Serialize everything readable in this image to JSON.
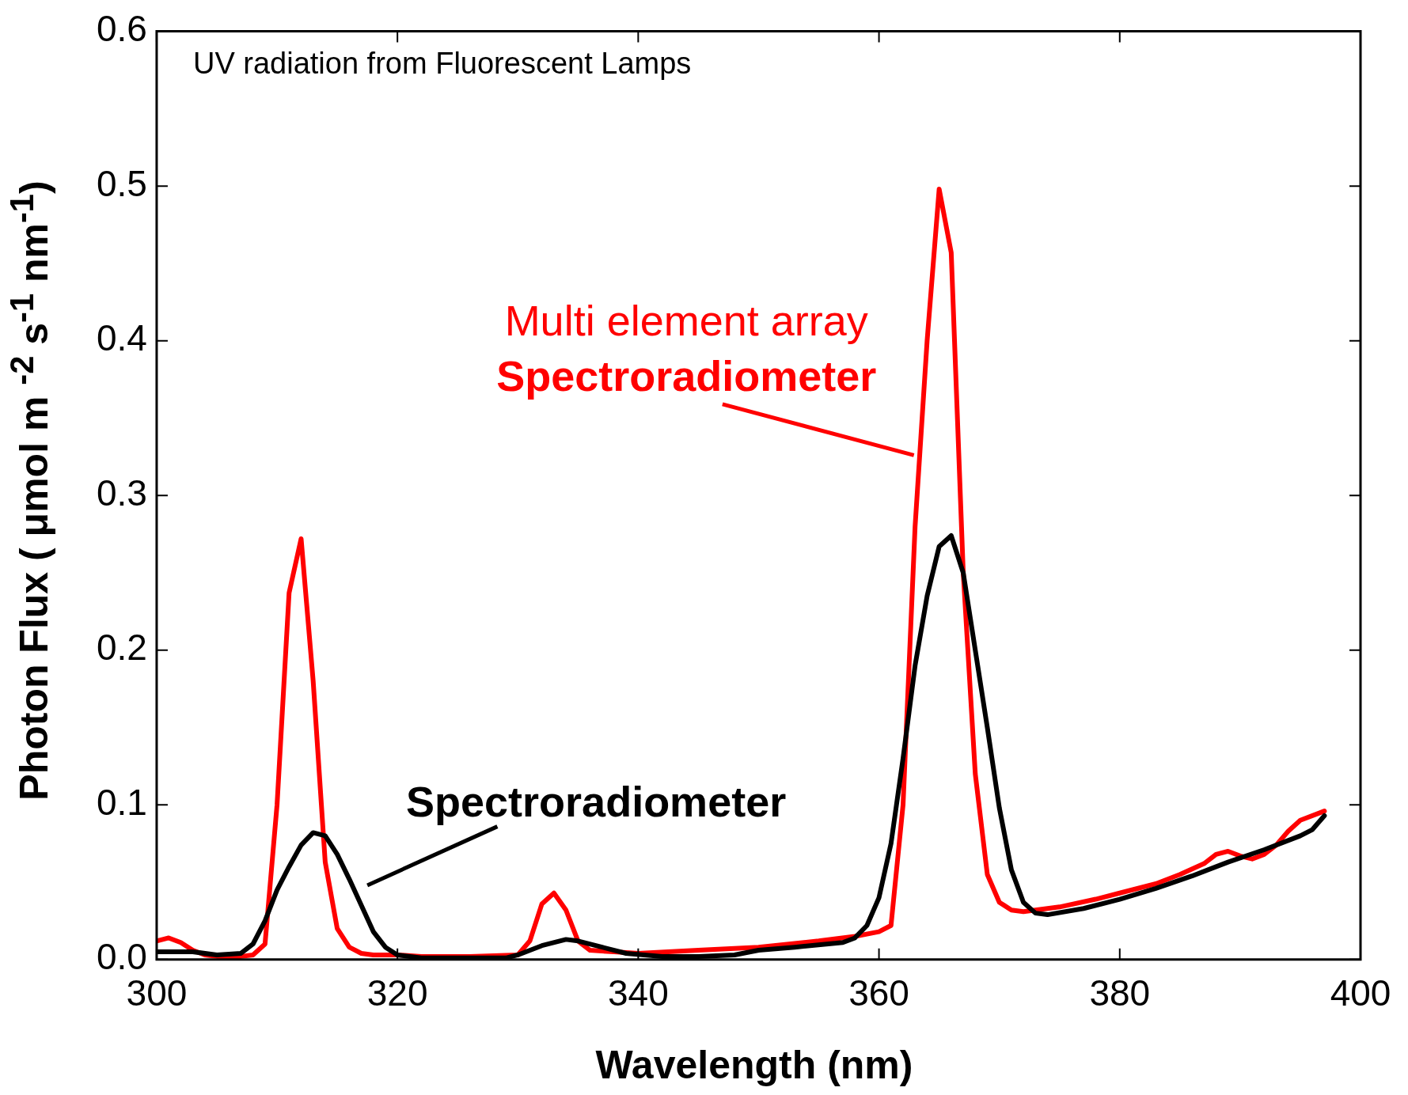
{
  "chart_data": {
    "type": "line",
    "title": "UV radiation from Fluorescent Lamps",
    "xlabel": "Wavelength (nm)",
    "ylabel": "Photon Flux ( μmol m $^{-2}$ s$^{-1}$ nm$^{-1}$)",
    "xlim": [
      300,
      400
    ],
    "xticks": [
      300,
      320,
      340,
      360,
      380,
      400
    ],
    "ylim": [
      0,
      0.6
    ],
    "yticks": [
      {
        "value": 0,
        "label": "0.0"
      },
      0.1,
      0.2,
      0.3,
      0.4,
      0.5,
      0.6
    ],
    "grid": false,
    "legend": false,
    "marker": "none",
    "line_style": "solid",
    "series": [
      {
        "name": "Spectroradiometer",
        "color": "#000000",
        "x": [
          300,
          303,
          305,
          307,
          308,
          309,
          310,
          311,
          312,
          313,
          314,
          315,
          316,
          317,
          318,
          319,
          320,
          322,
          326,
          329,
          330,
          332,
          334,
          335,
          337,
          339,
          342,
          345,
          348,
          350,
          353,
          357,
          358,
          359,
          360,
          361,
          362,
          363,
          364,
          365,
          366,
          367,
          368,
          369,
          370,
          371,
          372,
          373,
          374,
          377,
          380,
          383,
          386,
          389,
          392,
          395,
          396,
          397
        ],
        "values": [
          0.005,
          0.005,
          0.003,
          0.004,
          0.01,
          0.025,
          0.045,
          0.06,
          0.074,
          0.082,
          0.08,
          0.068,
          0.052,
          0.035,
          0.018,
          0.008,
          0.003,
          0.001,
          0.001,
          0.001,
          0.003,
          0.009,
          0.013,
          0.012,
          0.008,
          0.004,
          0.002,
          0.002,
          0.003,
          0.006,
          0.008,
          0.011,
          0.014,
          0.022,
          0.04,
          0.075,
          0.13,
          0.19,
          0.235,
          0.267,
          0.274,
          0.25,
          0.2,
          0.15,
          0.098,
          0.058,
          0.037,
          0.03,
          0.029,
          0.033,
          0.039,
          0.046,
          0.054,
          0.063,
          0.071,
          0.08,
          0.084,
          0.093
        ]
      },
      {
        "name": "Multi element array Spectroradiometer",
        "color": "#ff0000",
        "x": [
          300,
          301,
          302,
          303,
          304,
          305,
          306,
          307,
          308,
          309,
          310,
          311,
          312,
          313,
          314,
          315,
          316,
          317,
          318,
          320,
          322,
          326,
          330,
          331,
          332,
          333,
          334,
          335,
          336,
          338,
          340,
          345,
          350,
          355,
          358,
          360,
          361,
          362,
          363,
          364,
          365,
          366,
          367,
          368,
          369,
          370,
          371,
          372,
          375,
          378,
          380,
          383,
          385,
          387,
          388,
          389,
          390,
          391,
          392,
          393,
          394,
          395,
          397
        ],
        "values": [
          0.012,
          0.014,
          0.011,
          0.006,
          0.003,
          0.002,
          0.002,
          0.002,
          0.003,
          0.01,
          0.1,
          0.237,
          0.272,
          0.18,
          0.063,
          0.02,
          0.008,
          0.004,
          0.003,
          0.003,
          0.002,
          0.002,
          0.003,
          0.012,
          0.036,
          0.043,
          0.032,
          0.012,
          0.006,
          0.005,
          0.004,
          0.006,
          0.008,
          0.012,
          0.015,
          0.018,
          0.022,
          0.1,
          0.28,
          0.4,
          0.498,
          0.457,
          0.25,
          0.12,
          0.055,
          0.037,
          0.032,
          0.031,
          0.034,
          0.039,
          0.043,
          0.049,
          0.055,
          0.062,
          0.068,
          0.07,
          0.067,
          0.065,
          0.068,
          0.074,
          0.083,
          0.09,
          0.096
        ]
      }
    ]
  }
}
